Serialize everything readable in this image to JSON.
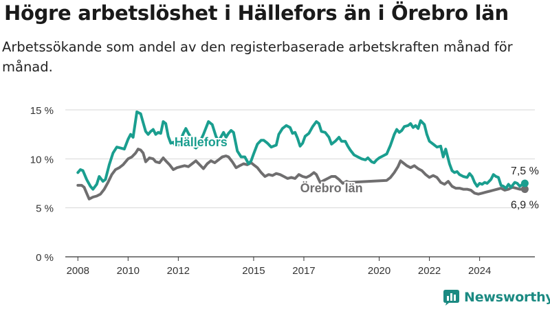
{
  "title": "Högre arbetslöshet i Hällefors än i Örebro län",
  "subtitle": "Arbetssökande som andel av den registerbaserade arbetskraften månad för månad.",
  "brand": {
    "name": "Newsworthy",
    "icon": "newsworthy-logo-icon",
    "color": "#1b8a82"
  },
  "colors": {
    "hallefors": "#1a9e8f",
    "orebro": "#6f6e6f",
    "grid": "#d6d6d6",
    "axis": "#333333"
  },
  "chart_data": {
    "type": "line",
    "x_unit": "year (decimal, monthly)",
    "x_ticks": [
      2008,
      2010,
      2012,
      2015,
      2017,
      2020,
      2022,
      2024
    ],
    "y_ticks": [
      0,
      5,
      10,
      15
    ],
    "y_tick_labels": [
      "0 %",
      "5 %",
      "10 %",
      "15 %"
    ],
    "ylim": [
      0,
      15
    ],
    "xlim": [
      2007.5,
      2026.2
    ],
    "grid": true,
    "series": [
      {
        "name": "Hällefors",
        "label_position": [
          2012.9,
          11.7
        ],
        "end_label": "7,5 %",
        "points": [
          [
            2008.0,
            8.6
          ],
          [
            2008.1,
            8.9
          ],
          [
            2008.2,
            8.8
          ],
          [
            2008.35,
            7.9
          ],
          [
            2008.5,
            7.2
          ],
          [
            2008.6,
            6.9
          ],
          [
            2008.75,
            7.4
          ],
          [
            2008.85,
            8.2
          ],
          [
            2009.0,
            7.7
          ],
          [
            2009.1,
            7.9
          ],
          [
            2009.25,
            9.4
          ],
          [
            2009.4,
            10.6
          ],
          [
            2009.55,
            11.2
          ],
          [
            2009.7,
            11.1
          ],
          [
            2009.85,
            11.0
          ],
          [
            2010.0,
            12.0
          ],
          [
            2010.1,
            12.5
          ],
          [
            2010.2,
            12.2
          ],
          [
            2010.35,
            14.8
          ],
          [
            2010.5,
            14.6
          ],
          [
            2010.6,
            13.7
          ],
          [
            2010.7,
            12.8
          ],
          [
            2010.8,
            12.5
          ],
          [
            2010.9,
            12.8
          ],
          [
            2011.0,
            13.0
          ],
          [
            2011.1,
            12.5
          ],
          [
            2011.2,
            12.7
          ],
          [
            2011.3,
            12.6
          ],
          [
            2011.4,
            13.8
          ],
          [
            2011.5,
            13.6
          ],
          [
            2011.6,
            12.3
          ],
          [
            2011.7,
            11.6
          ],
          [
            2011.8,
            11.7
          ],
          [
            2011.9,
            11.3
          ],
          [
            2012.0,
            11.4
          ],
          [
            2012.1,
            12.0
          ],
          [
            2012.2,
            12.6
          ],
          [
            2012.3,
            13.1
          ],
          [
            2012.4,
            12.6
          ],
          [
            2012.5,
            12.2
          ],
          [
            2012.6,
            11.3
          ],
          [
            2012.7,
            11.1
          ],
          [
            2012.8,
            11.4
          ],
          [
            2013.0,
            12.5
          ],
          [
            2013.2,
            13.8
          ],
          [
            2013.35,
            13.5
          ],
          [
            2013.5,
            12.3
          ],
          [
            2013.6,
            11.8
          ],
          [
            2013.8,
            12.7
          ],
          [
            2013.9,
            12.2
          ],
          [
            2014.0,
            12.6
          ],
          [
            2014.1,
            12.9
          ],
          [
            2014.2,
            12.7
          ],
          [
            2014.35,
            10.8
          ],
          [
            2014.5,
            10.2
          ],
          [
            2014.65,
            10.2
          ],
          [
            2014.8,
            9.5
          ],
          [
            2014.9,
            9.8
          ],
          [
            2015.0,
            10.5
          ],
          [
            2015.15,
            11.5
          ],
          [
            2015.3,
            11.9
          ],
          [
            2015.4,
            11.9
          ],
          [
            2015.55,
            11.6
          ],
          [
            2015.7,
            11.2
          ],
          [
            2015.8,
            11.3
          ],
          [
            2015.9,
            11.4
          ],
          [
            2016.0,
            12.5
          ],
          [
            2016.15,
            13.1
          ],
          [
            2016.3,
            13.4
          ],
          [
            2016.45,
            13.2
          ],
          [
            2016.55,
            12.6
          ],
          [
            2016.65,
            12.7
          ],
          [
            2016.75,
            12.1
          ],
          [
            2016.85,
            11.3
          ],
          [
            2016.95,
            11.6
          ],
          [
            2017.05,
            12.3
          ],
          [
            2017.2,
            12.6
          ],
          [
            2017.35,
            13.3
          ],
          [
            2017.5,
            13.8
          ],
          [
            2017.6,
            13.6
          ],
          [
            2017.7,
            12.8
          ],
          [
            2017.85,
            12.7
          ],
          [
            2018.0,
            12.2
          ],
          [
            2018.1,
            11.5
          ],
          [
            2018.25,
            11.8
          ],
          [
            2018.4,
            12.2
          ],
          [
            2018.5,
            11.8
          ],
          [
            2018.65,
            11.8
          ],
          [
            2018.75,
            11.3
          ],
          [
            2018.85,
            10.9
          ],
          [
            2019.0,
            10.4
          ],
          [
            2019.15,
            10.2
          ],
          [
            2019.3,
            10.0
          ],
          [
            2019.45,
            9.9
          ],
          [
            2019.55,
            10.1
          ],
          [
            2019.7,
            9.7
          ],
          [
            2019.8,
            9.6
          ],
          [
            2019.9,
            9.9
          ],
          [
            2020.0,
            10.1
          ],
          [
            2020.15,
            10.3
          ],
          [
            2020.3,
            10.5
          ],
          [
            2020.45,
            11.4
          ],
          [
            2020.6,
            12.5
          ],
          [
            2020.7,
            13.0
          ],
          [
            2020.8,
            12.7
          ],
          [
            2020.9,
            12.9
          ],
          [
            2021.0,
            13.3
          ],
          [
            2021.15,
            13.4
          ],
          [
            2021.25,
            13.6
          ],
          [
            2021.35,
            13.2
          ],
          [
            2021.45,
            13.4
          ],
          [
            2021.55,
            13.1
          ],
          [
            2021.65,
            13.9
          ],
          [
            2021.8,
            13.5
          ],
          [
            2021.9,
            12.5
          ],
          [
            2022.0,
            11.8
          ],
          [
            2022.15,
            11.5
          ],
          [
            2022.3,
            11.2
          ],
          [
            2022.45,
            11.3
          ],
          [
            2022.55,
            10.2
          ],
          [
            2022.65,
            11.0
          ],
          [
            2022.8,
            9.5
          ],
          [
            2022.9,
            8.8
          ],
          [
            2023.0,
            8.6
          ],
          [
            2023.1,
            8.7
          ],
          [
            2023.2,
            8.4
          ],
          [
            2023.35,
            8.2
          ],
          [
            2023.5,
            8.1
          ],
          [
            2023.6,
            8.5
          ],
          [
            2023.7,
            8.2
          ],
          [
            2023.8,
            7.6
          ],
          [
            2023.9,
            7.2
          ],
          [
            2024.0,
            7.5
          ],
          [
            2024.1,
            7.4
          ],
          [
            2024.2,
            7.6
          ],
          [
            2024.3,
            7.5
          ],
          [
            2024.45,
            7.9
          ],
          [
            2024.55,
            8.4
          ],
          [
            2024.65,
            8.2
          ],
          [
            2024.75,
            8.1
          ],
          [
            2024.85,
            7.3
          ],
          [
            2024.95,
            7.2
          ],
          [
            2025.05,
            7.0
          ],
          [
            2025.15,
            7.4
          ],
          [
            2025.25,
            7.1
          ],
          [
            2025.4,
            7.6
          ],
          [
            2025.5,
            7.5
          ],
          [
            2025.6,
            7.2
          ],
          [
            2025.7,
            7.4
          ],
          [
            2025.8,
            7.5
          ]
        ]
      },
      {
        "name": "Örebro län",
        "label_position": [
          2018.1,
          7.0
        ],
        "end_label": "6,9 %",
        "points": [
          [
            2008.0,
            7.3
          ],
          [
            2008.15,
            7.3
          ],
          [
            2008.25,
            7.1
          ],
          [
            2008.35,
            6.5
          ],
          [
            2008.45,
            5.9
          ],
          [
            2008.6,
            6.1
          ],
          [
            2008.75,
            6.2
          ],
          [
            2008.9,
            6.4
          ],
          [
            2009.05,
            6.9
          ],
          [
            2009.2,
            7.6
          ],
          [
            2009.35,
            8.4
          ],
          [
            2009.5,
            8.9
          ],
          [
            2009.65,
            9.1
          ],
          [
            2009.8,
            9.4
          ],
          [
            2010.0,
            10.0
          ],
          [
            2010.15,
            10.2
          ],
          [
            2010.3,
            10.6
          ],
          [
            2010.4,
            11.0
          ],
          [
            2010.5,
            10.9
          ],
          [
            2010.6,
            10.6
          ],
          [
            2010.7,
            9.7
          ],
          [
            2010.85,
            10.1
          ],
          [
            2011.0,
            10.0
          ],
          [
            2011.1,
            9.7
          ],
          [
            2011.25,
            9.6
          ],
          [
            2011.4,
            10.1
          ],
          [
            2011.5,
            9.8
          ],
          [
            2011.65,
            9.4
          ],
          [
            2011.8,
            8.9
          ],
          [
            2011.95,
            9.1
          ],
          [
            2012.1,
            9.2
          ],
          [
            2012.25,
            9.3
          ],
          [
            2012.4,
            9.2
          ],
          [
            2012.55,
            9.5
          ],
          [
            2012.7,
            9.8
          ],
          [
            2012.85,
            9.4
          ],
          [
            2013.0,
            9.0
          ],
          [
            2013.15,
            9.5
          ],
          [
            2013.3,
            9.8
          ],
          [
            2013.45,
            9.6
          ],
          [
            2013.6,
            9.9
          ],
          [
            2013.75,
            10.2
          ],
          [
            2013.9,
            10.3
          ],
          [
            2014.0,
            10.2
          ],
          [
            2014.15,
            9.7
          ],
          [
            2014.3,
            9.1
          ],
          [
            2014.45,
            9.3
          ],
          [
            2014.6,
            9.5
          ],
          [
            2014.75,
            9.4
          ],
          [
            2014.9,
            9.6
          ],
          [
            2015.0,
            9.4
          ],
          [
            2015.15,
            9.1
          ],
          [
            2015.3,
            8.6
          ],
          [
            2015.45,
            8.2
          ],
          [
            2015.6,
            8.4
          ],
          [
            2015.75,
            8.3
          ],
          [
            2015.9,
            8.5
          ],
          [
            2016.05,
            8.4
          ],
          [
            2016.2,
            8.2
          ],
          [
            2016.35,
            8.0
          ],
          [
            2016.5,
            8.1
          ],
          [
            2016.65,
            8.0
          ],
          [
            2016.8,
            8.4
          ],
          [
            2016.95,
            8.2
          ],
          [
            2017.1,
            8.1
          ],
          [
            2017.25,
            8.3
          ],
          [
            2017.4,
            8.6
          ],
          [
            2017.5,
            8.4
          ],
          [
            2017.65,
            7.6
          ],
          [
            2017.8,
            7.8
          ],
          [
            2017.95,
            8.0
          ],
          [
            2018.1,
            8.2
          ],
          [
            2018.25,
            8.2
          ],
          [
            2018.4,
            7.9
          ],
          [
            2018.55,
            7.5
          ],
          [
            2018.7,
            7.7
          ],
          [
            2018.8,
            7.6
          ],
          [
            2020.3,
            7.8
          ],
          [
            2020.45,
            8.1
          ],
          [
            2020.6,
            8.6
          ],
          [
            2020.75,
            9.2
          ],
          [
            2020.85,
            9.8
          ],
          [
            2020.95,
            9.6
          ],
          [
            2021.1,
            9.3
          ],
          [
            2021.25,
            9.1
          ],
          [
            2021.4,
            9.3
          ],
          [
            2021.55,
            9.0
          ],
          [
            2021.7,
            8.8
          ],
          [
            2021.85,
            8.4
          ],
          [
            2022.0,
            8.1
          ],
          [
            2022.15,
            8.3
          ],
          [
            2022.3,
            8.1
          ],
          [
            2022.45,
            7.6
          ],
          [
            2022.6,
            7.4
          ],
          [
            2022.75,
            7.7
          ],
          [
            2022.9,
            7.2
          ],
          [
            2023.05,
            7.0
          ],
          [
            2023.2,
            7.0
          ],
          [
            2023.35,
            6.9
          ],
          [
            2023.5,
            6.9
          ],
          [
            2023.65,
            6.8
          ],
          [
            2023.8,
            6.5
          ],
          [
            2023.95,
            6.4
          ],
          [
            2024.1,
            6.5
          ],
          [
            2024.25,
            6.6
          ],
          [
            2024.4,
            6.7
          ],
          [
            2024.55,
            6.8
          ],
          [
            2024.7,
            6.9
          ],
          [
            2024.85,
            7.0
          ],
          [
            2025.0,
            6.8
          ],
          [
            2025.15,
            6.9
          ],
          [
            2025.3,
            7.1
          ],
          [
            2025.45,
            7.0
          ],
          [
            2025.6,
            6.9
          ],
          [
            2025.8,
            6.9
          ]
        ]
      }
    ]
  }
}
